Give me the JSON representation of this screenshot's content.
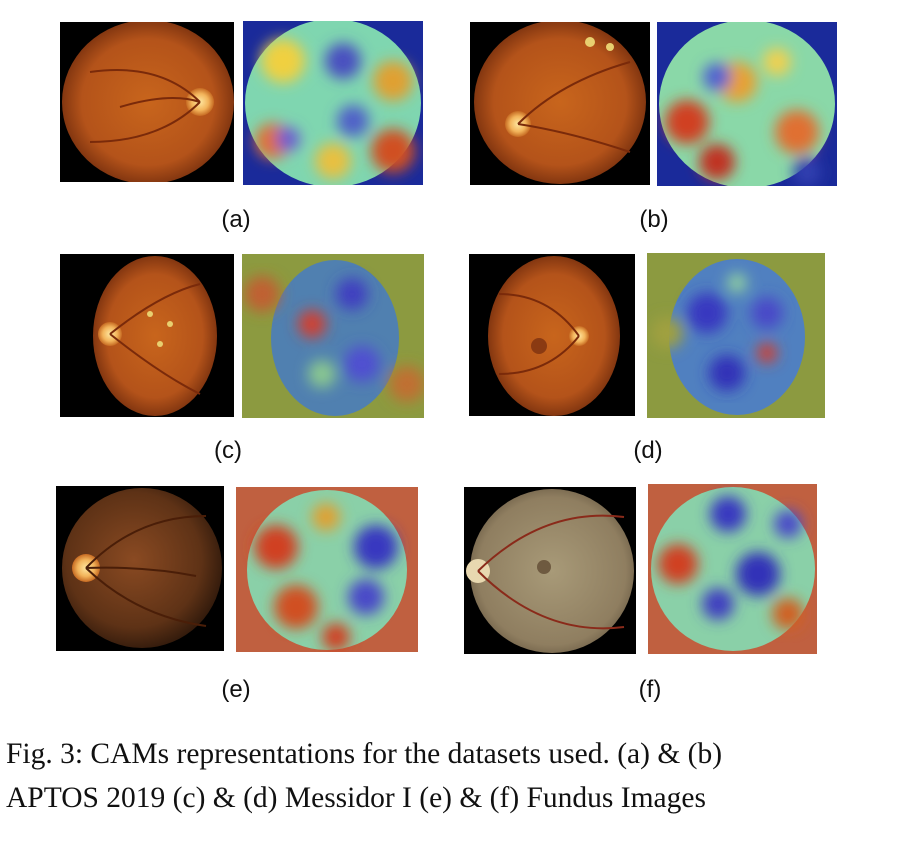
{
  "panels": [
    {
      "id": "a",
      "label": "(a)"
    },
    {
      "id": "b",
      "label": "(b)"
    },
    {
      "id": "c",
      "label": "(c)"
    },
    {
      "id": "d",
      "label": "(d)"
    },
    {
      "id": "e",
      "label": "(e)"
    },
    {
      "id": "f",
      "label": "(f)"
    }
  ],
  "caption": {
    "line1": "Fig. 3: CAMs representations for the datasets used. (a) & (b)",
    "line2": "APTOS 2019 (c) & (d) Messidor I (e) & (f) Fundus Images"
  }
}
